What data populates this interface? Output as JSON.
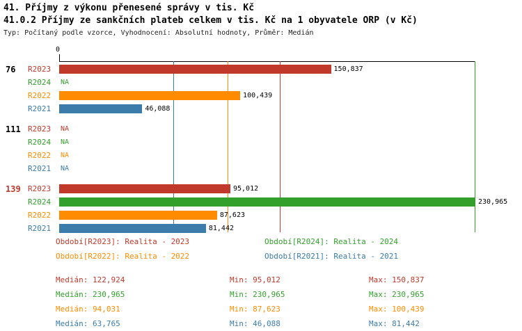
{
  "header": {
    "title1": "41. Příjmy z výkonu přenesené správy v tis. Kč",
    "title2": "41.0.2 Příjmy ze sankčních plateb celkem v tis. Kč na 1 obyvatele ORP (v Kč)",
    "subtitle": "Typ: Počítaný podle vzorce, Vyhodnocení: Absolutní hodnoty, Průměr: Medián"
  },
  "axis": {
    "zero_label": "0"
  },
  "colors": {
    "R2023": "#c0392b",
    "R2024": "#33a02c",
    "R2022": "#ff8c00",
    "R2021": "#3b7cab"
  },
  "chart_data": {
    "type": "bar",
    "orientation": "horizontal",
    "x_max": 230965,
    "xlim": [
      0,
      230965
    ],
    "groups": [
      {
        "label": "76",
        "label_color": "#000000",
        "rows": [
          {
            "series": "R2023",
            "value": 150837,
            "value_label": "150,837"
          },
          {
            "series": "R2024",
            "value": null,
            "value_label": "NA"
          },
          {
            "series": "R2022",
            "value": 100439,
            "value_label": "100,439"
          },
          {
            "series": "R2021",
            "value": 46088,
            "value_label": "46,088"
          }
        ]
      },
      {
        "label": "111",
        "label_color": "#000000",
        "rows": [
          {
            "series": "R2023",
            "value": null,
            "value_label": "NA"
          },
          {
            "series": "R2024",
            "value": null,
            "value_label": "NA"
          },
          {
            "series": "R2022",
            "value": null,
            "value_label": "NA"
          },
          {
            "series": "R2021",
            "value": null,
            "value_label": "NA"
          }
        ]
      },
      {
        "label": "139",
        "label_color": "#c0392b",
        "rows": [
          {
            "series": "R2023",
            "value": 95012,
            "value_label": "95,012"
          },
          {
            "series": "R2024",
            "value": 230965,
            "value_label": "230,965"
          },
          {
            "series": "R2022",
            "value": 87623,
            "value_label": "87,623"
          },
          {
            "series": "R2021",
            "value": 81442,
            "value_label": "81,442"
          }
        ]
      }
    ],
    "median_lines": [
      {
        "series": "R2021",
        "value": 63765
      },
      {
        "series": "R2022",
        "value": 94031
      },
      {
        "series": "R2023",
        "value": 122924
      },
      {
        "series": "R2024",
        "value": 230965
      }
    ]
  },
  "legend": [
    {
      "series": "R2023",
      "label": "Období[R2023]: Realita - 2023"
    },
    {
      "series": "R2024",
      "label": "Období[R2024]: Realita - 2024"
    },
    {
      "series": "R2022",
      "label": "Období[R2022]: Realita - 2022"
    },
    {
      "series": "R2021",
      "label": "Období[R2021]: Realita - 2021"
    }
  ],
  "stats": [
    {
      "series": "R2023",
      "median": "Medián: 122,924",
      "min": "Min: 95,012",
      "max": "Max: 150,837"
    },
    {
      "series": "R2024",
      "median": "Medián: 230,965",
      "min": "Min: 230,965",
      "max": "Max: 230,965"
    },
    {
      "series": "R2022",
      "median": "Medián: 94,031",
      "min": "Min: 87,623",
      "max": "Max: 100,439"
    },
    {
      "series": "R2021",
      "median": "Medián: 63,765",
      "min": "Min: 46,088",
      "max": "Max: 81,442"
    }
  ]
}
